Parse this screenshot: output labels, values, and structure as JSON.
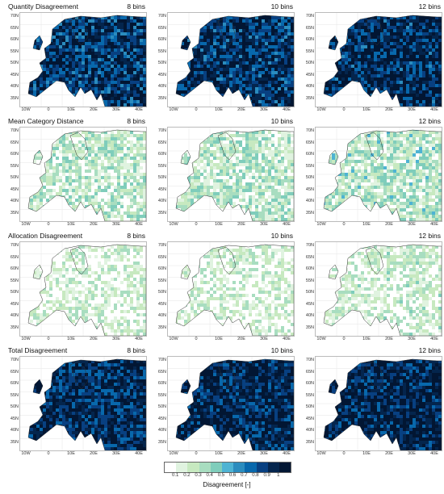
{
  "rows": [
    {
      "metric": "Quantity Disagreement",
      "intensity": 0.85
    },
    {
      "metric": "Mean Category Distance",
      "intensity": 0.18
    },
    {
      "metric": "Allocation Disagreement",
      "intensity": 0.07
    },
    {
      "metric": "Total Disagreement",
      "intensity": 0.9
    }
  ],
  "columns": [
    "8 bins",
    "10 bins",
    "12 bins"
  ],
  "y_ticks": [
    "70N",
    "65N",
    "60N",
    "55N",
    "50N",
    "45N",
    "40N",
    "35N"
  ],
  "x_ticks": [
    "10W",
    "0",
    "10E",
    "20E",
    "30E",
    "40E"
  ],
  "colorbar": {
    "colors": [
      "#ffffff",
      "#e0f3e0",
      "#c7e9c0",
      "#a8ddc0",
      "#7fcdbb",
      "#4eb3d3",
      "#2b8cbe",
      "#0868ac",
      "#084081",
      "#04254d",
      "#021633"
    ],
    "ticks": [
      "0.1",
      "0.2",
      "0.3",
      "0.4",
      "0.5",
      "0.6",
      "0.7",
      "0.8",
      "0.9",
      "1"
    ],
    "label": "Disagreement [-]"
  }
}
